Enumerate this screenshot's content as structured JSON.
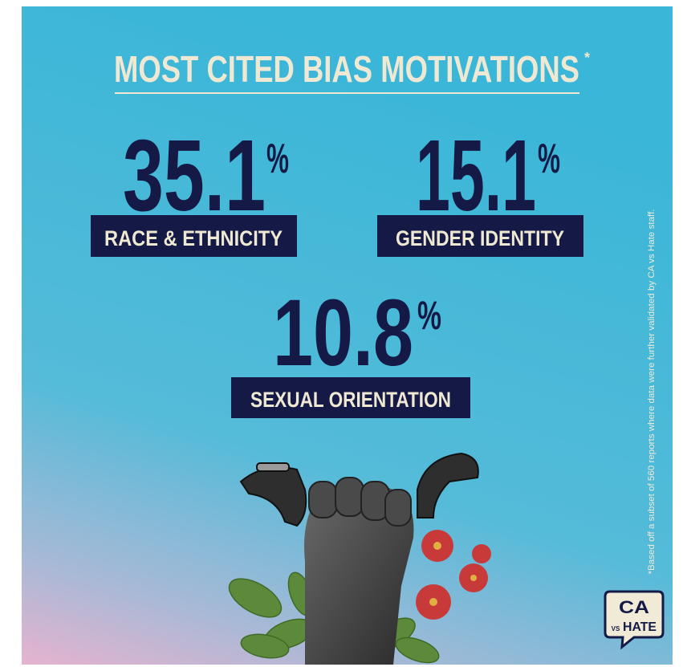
{
  "header": {
    "title": "MOST CITED BIAS MOTIVATIONS",
    "marker": "*"
  },
  "stats": [
    {
      "value": "35.1",
      "unit": "%",
      "label": "RACE & ETHNICITY"
    },
    {
      "value": "15.1",
      "unit": "%",
      "label": "GENDER IDENTITY"
    },
    {
      "value": "10.8",
      "unit": "%",
      "label": "SEXUAL ORIENTATION"
    }
  ],
  "footnote": "*Based off a subset of 560 reports where data were further validated by CA vs Hate staff.",
  "logo": {
    "top": "CA",
    "middle": "VS",
    "bottom": "HATE"
  }
}
